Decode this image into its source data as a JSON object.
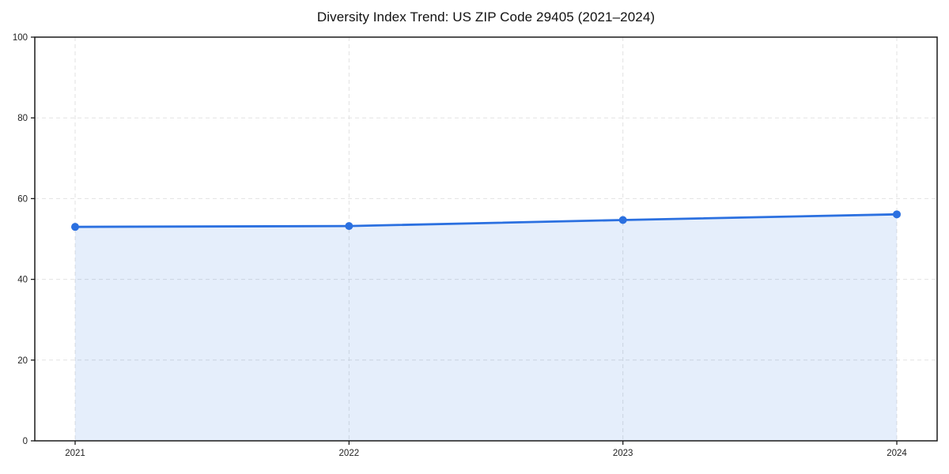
{
  "chart_data": {
    "type": "area",
    "title": "Diversity Index Trend: US ZIP Code 29405 (2021–2024)",
    "x": [
      2021,
      2022,
      2023,
      2024
    ],
    "values": [
      53.0,
      53.2,
      54.7,
      56.1
    ],
    "xlabel": "",
    "ylabel": "",
    "xlim": [
      2020.85,
      2024.15
    ],
    "ylim": [
      0,
      100
    ],
    "yticks": [
      0,
      20,
      40,
      60,
      80,
      100
    ],
    "xticks": [
      2021,
      2022,
      2023,
      2024
    ],
    "grid": true,
    "grid_style": "dashed",
    "legend": "none",
    "colors": {
      "line": "#2b70e0",
      "fill": "rgba(43,112,224,0.12)",
      "marker": "#2b70e0",
      "grid": "#e2e2e2",
      "frame": "#1a1a1a",
      "tick_label": "#222222",
      "title": "#111111",
      "background": "#ffffff"
    }
  }
}
